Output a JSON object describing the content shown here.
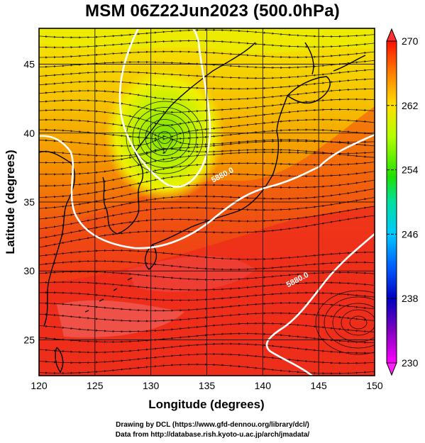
{
  "title": "MSM 06Z22Jun2023 (500.0hPa)",
  "chart_data": {
    "type": "map",
    "projection": "equirectangular",
    "xlabel": "Longitude (degrees)",
    "ylabel": "Latitude  (degrees)",
    "xlim": [
      120,
      150
    ],
    "ylim": [
      22.4,
      47.6
    ],
    "x_ticks": [
      120,
      125,
      130,
      135,
      140,
      145,
      150
    ],
    "y_ticks": [
      25,
      30,
      35,
      40,
      45
    ],
    "grid": true,
    "field": "temperature",
    "colorbar": {
      "min": 230,
      "max": 270,
      "ticks": [
        230,
        238,
        246,
        254,
        262,
        270
      ],
      "colors": [
        "#ff00ff",
        "#8000c0",
        "#0000c0",
        "#0060ff",
        "#00c8ff",
        "#00ff80",
        "#80ff00",
        "#ffff00",
        "#ffa000",
        "#ff3000",
        "#ff0000"
      ]
    },
    "contours": [
      {
        "label": "5880.0",
        "lon": 136.5,
        "lat": 36.8
      },
      {
        "label": "5880.0",
        "lon": 143.2,
        "lat": 29.2
      }
    ],
    "streamlines": true
  },
  "credits": {
    "line1": "Drawing by DCL (https://www.gfd-dennou.org/library/dcl/)",
    "line2": "Data from http://database.rish.kyoto-u.ac.jp/arch/jmadata/"
  }
}
